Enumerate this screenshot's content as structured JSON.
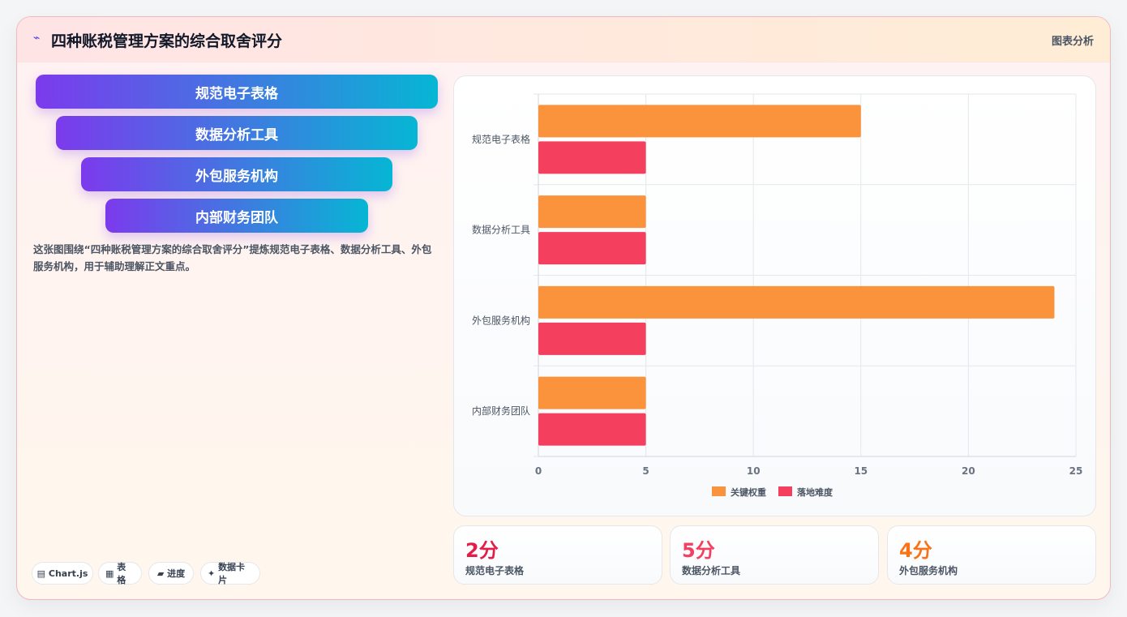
{
  "header": {
    "icon": "chart-line-icon",
    "title": "四种账税管理方案的综合取舍评分",
    "right_label": "图表分析"
  },
  "funnel": [
    {
      "label": "规范电子表格"
    },
    {
      "label": "数据分析工具"
    },
    {
      "label": "外包服务机构"
    },
    {
      "label": "内部财务团队"
    }
  ],
  "description": "这张图围绕“四种账税管理方案的综合取舍评分”提炼规范电子表格、数据分析工具、外包服务机构，用于辅助理解正文重点。",
  "chips": [
    {
      "icon": "▤",
      "label": "Chart.js"
    },
    {
      "icon": "▦",
      "label": "表格"
    },
    {
      "icon": "▰",
      "label": "进度"
    },
    {
      "icon": "✦",
      "label": "数据卡片"
    }
  ],
  "colors": {
    "series1": "#fb923c",
    "series2": "#f43f5e",
    "funnel_start": "#7c3aed",
    "funnel_end": "#06b6d4"
  },
  "chart_data": {
    "type": "bar",
    "orientation": "horizontal",
    "categories": [
      "规范电子表格",
      "数据分析工具",
      "外包服务机构",
      "内部财务团队"
    ],
    "series": [
      {
        "name": "关键权重",
        "values": [
          15,
          5,
          24,
          5
        ]
      },
      {
        "name": "落地难度",
        "values": [
          5,
          5,
          5,
          5
        ]
      }
    ],
    "xlim": [
      0,
      25
    ],
    "x_ticks": [
      0,
      5,
      10,
      15,
      20,
      25
    ],
    "grid": true,
    "legend_position": "bottom"
  },
  "stats": [
    {
      "value": "2分",
      "label": "规范电子表格",
      "color": "#e11d48"
    },
    {
      "value": "5分",
      "label": "数据分析工具",
      "color": "#f43f5e"
    },
    {
      "value": "4分",
      "label": "外包服务机构",
      "color": "#f97316"
    }
  ]
}
